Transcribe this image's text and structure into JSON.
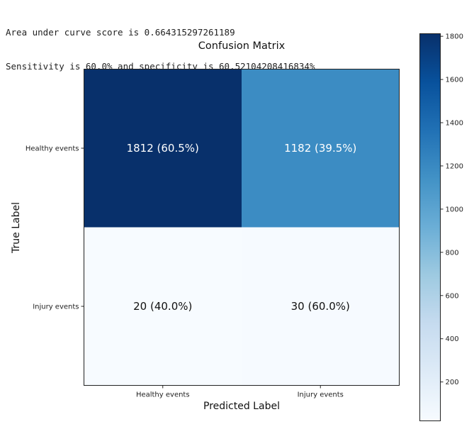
{
  "console": {
    "line1": "Area under curve score is 0.664315297261189",
    "line2": "Sensitivity is 60.0% and specificity is 60.52104208416834%"
  },
  "chart_data": {
    "type": "heatmap",
    "title": "Confusion Matrix",
    "xlabel": "Predicted Label",
    "ylabel": "True Label",
    "x_categories": [
      "Healthy events",
      "Injury events"
    ],
    "y_categories": [
      "Healthy events",
      "Injury events"
    ],
    "values": [
      [
        1812,
        1182
      ],
      [
        20,
        30
      ]
    ],
    "cell_labels": [
      [
        "1812 (60.5%)",
        "1182 (39.5%)"
      ],
      [
        "20 (40.0%)",
        "30 (60.0%)"
      ]
    ],
    "colormap": "Blues",
    "colorbar": {
      "min": 20,
      "max": 1812,
      "ticks": [
        200,
        400,
        600,
        800,
        1000,
        1200,
        1400,
        1600,
        1800
      ]
    }
  }
}
